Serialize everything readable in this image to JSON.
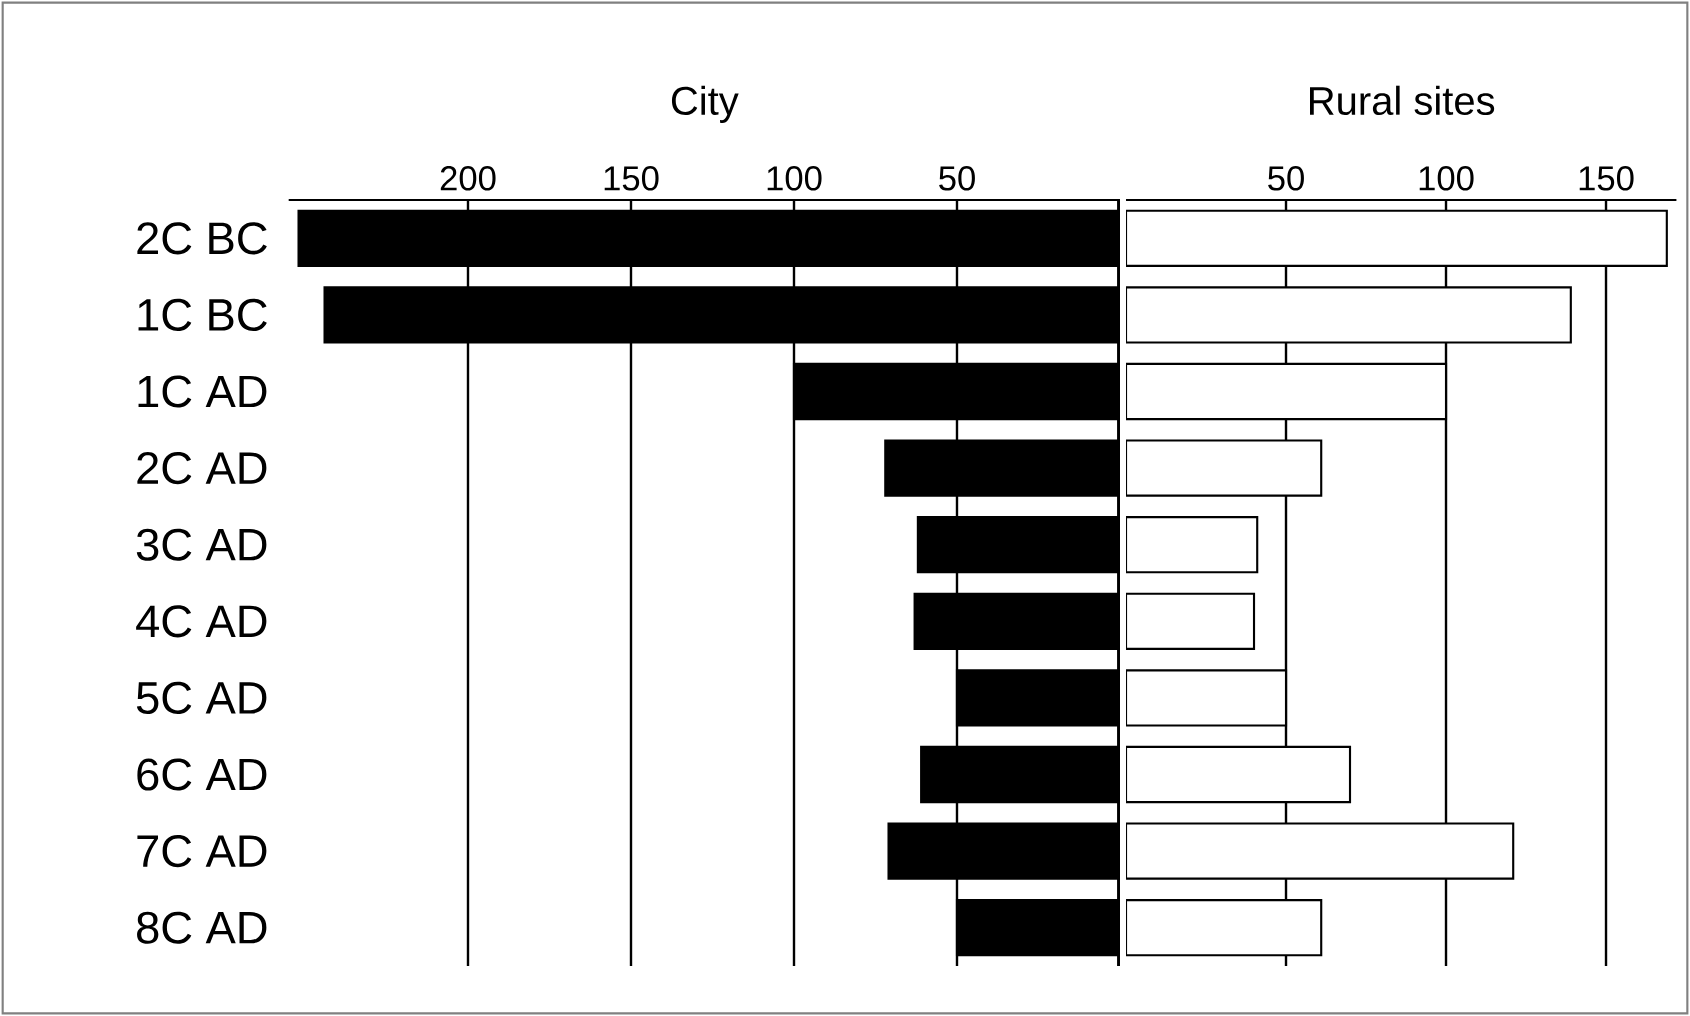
{
  "chart_data": [
    {
      "type": "bar",
      "orientation": "horizontal",
      "title": "City",
      "categories": [
        "2C BC",
        "1C BC",
        "1C AD",
        "2C AD",
        "3C AD",
        "4C AD",
        "5C AD",
        "6C AD",
        "7C AD",
        "8C AD"
      ],
      "values": [
        252,
        244,
        100,
        72,
        62,
        63,
        50,
        61,
        71,
        50
      ],
      "color": "#000000",
      "xlim": [
        255,
        0
      ],
      "xticks": [
        200,
        150,
        100,
        50
      ],
      "grid": "x"
    },
    {
      "type": "bar",
      "orientation": "horizontal",
      "title": "Rural sites",
      "values": [
        169,
        139,
        100,
        61,
        41,
        40,
        50,
        70,
        121,
        61
      ],
      "color": "#ffffff",
      "xlim": [
        0,
        172
      ],
      "xticks": [
        50,
        100,
        150
      ],
      "grid": "x",
      "tick_labels": "x"
    }
  ]
}
